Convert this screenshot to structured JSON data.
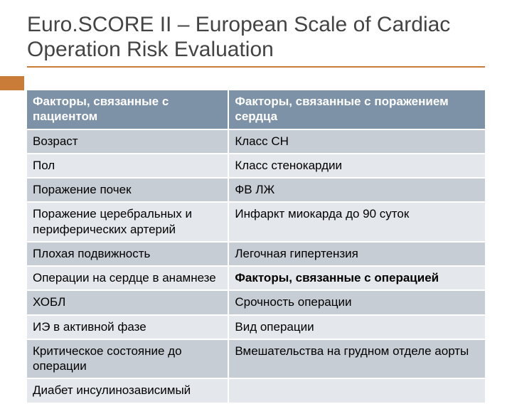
{
  "title": "Euro.SCORE II – European Scale of Cardiac Operation Risk Evaluation",
  "table": {
    "r0c0": "Факторы, связанные с пациентом",
    "r0c1": "Факторы, связанные с поражением сердца",
    "r1c0": "Возраст",
    "r1c1": "Класс СН",
    "r2c0": "Пол",
    "r2c1": "Класс стенокардии",
    "r3c0": "Поражение почек",
    "r3c1": "ФВ ЛЖ",
    "r4c0": "Поражение  церебральных и периферических артерий",
    "r4c1": "Инфаркт миокарда до 90 суток",
    "r5c0": "Плохая подвижность",
    "r5c1": "Легочная гипертензия",
    "r6c0": "Операции на сердце в анамнезе",
    "r6c1": "Факторы, связанные с операцией",
    "r7c0": "ХОБЛ",
    "r7c1": "Срочность операции",
    "r8c0": "ИЭ в активной фазе",
    "r8c1": "Вид операции",
    "r9c0": "Критическое состояние до операции",
    "r9c1": "Вмешательства на грудном отделе аорты",
    "r10c0": "Диабет инсулинозависимый",
    "r10c1": ""
  },
  "styles": {
    "title_color": "#444444",
    "accent_color": "#c97c38",
    "header_bg": "#7d92a7",
    "row_dark": "#c7cdd4",
    "row_light": "#e4e7eb"
  }
}
